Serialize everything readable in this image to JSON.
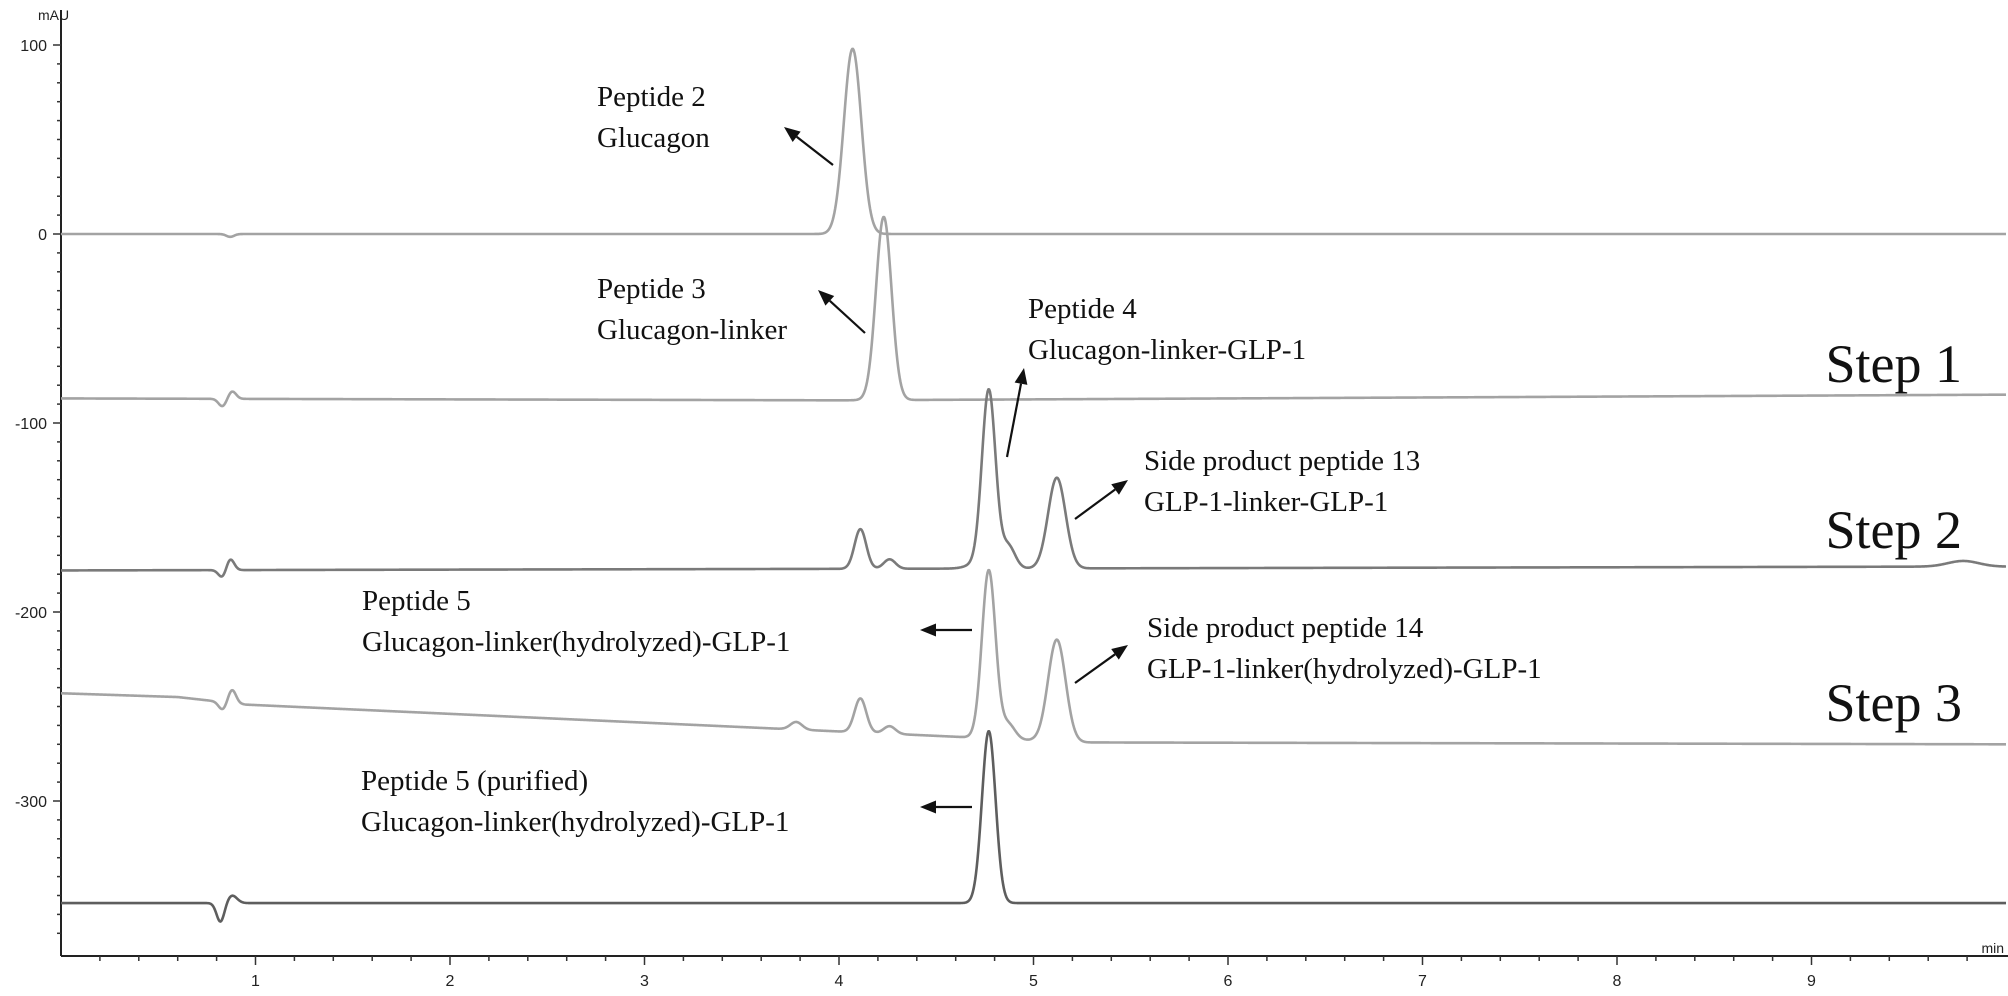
{
  "chart_data": {
    "type": "line",
    "title": "",
    "xlabel": "min",
    "ylabel": "mAU",
    "xlim": [
      0,
      10
    ],
    "ylim": [
      -385,
      110
    ],
    "x_ticks": [
      1,
      2,
      3,
      4,
      5,
      6,
      7,
      8,
      9
    ],
    "y_ticks": [
      100,
      0,
      -100,
      -200,
      -300
    ],
    "x_tick_labels": [
      "1",
      "2",
      "3",
      "4",
      "5",
      "6",
      "7",
      "8",
      "9"
    ],
    "y_tick_labels": [
      "100",
      "0",
      "-100",
      "-200",
      "-300"
    ],
    "grid": false,
    "series": [
      {
        "color": "#a3a3a3",
        "baseline": 0,
        "peaks": [
          {
            "x": 4.07,
            "height": 98,
            "width": 0.045
          },
          {
            "x": 0.87,
            "height": -1.5,
            "width": 0.02
          }
        ]
      },
      {
        "color": "#a3a3a3",
        "baseline_points": [
          [
            0,
            -87
          ],
          [
            4.0,
            -88
          ],
          [
            10,
            -85
          ]
        ],
        "peaks": [
          {
            "x": 4.23,
            "height": 97,
            "width": 0.04
          },
          {
            "x": 0.83,
            "height": -4,
            "width": 0.02
          },
          {
            "x": 0.88,
            "height": 4,
            "width": 0.02
          }
        ]
      },
      {
        "color": "#7a7a7a",
        "baseline_points": [
          [
            0,
            -178
          ],
          [
            9.6,
            -176
          ],
          [
            10,
            -176
          ]
        ],
        "peaks": [
          {
            "x": 4.77,
            "height": 94,
            "width": 0.035
          },
          {
            "x": 4.87,
            "height": 12,
            "width": 0.035
          },
          {
            "x": 5.12,
            "height": 48,
            "width": 0.045
          },
          {
            "x": 4.11,
            "height": 21,
            "width": 0.03
          },
          {
            "x": 4.26,
            "height": 5,
            "width": 0.03
          },
          {
            "x": 4.7,
            "height": 2,
            "width": 0.05
          },
          {
            "x": 9.78,
            "height": 3,
            "width": 0.08
          },
          {
            "x": 0.83,
            "height": -4,
            "width": 0.02
          },
          {
            "x": 0.87,
            "height": 6,
            "width": 0.02
          }
        ]
      },
      {
        "color": "#a3a3a3",
        "baseline_points": [
          [
            0,
            -243
          ],
          [
            0.6,
            -245
          ],
          [
            0.95,
            -249
          ],
          [
            4.6,
            -266
          ],
          [
            5.2,
            -269
          ],
          [
            10,
            -270
          ]
        ],
        "peaks": [
          {
            "x": 4.77,
            "height": 89,
            "width": 0.035
          },
          {
            "x": 4.87,
            "height": 8,
            "width": 0.035
          },
          {
            "x": 5.12,
            "height": 54,
            "width": 0.045
          },
          {
            "x": 4.11,
            "height": 18,
            "width": 0.03
          },
          {
            "x": 4.26,
            "height": 4,
            "width": 0.03
          },
          {
            "x": 3.78,
            "height": 4,
            "width": 0.03
          },
          {
            "x": 0.83,
            "height": -4,
            "width": 0.02
          },
          {
            "x": 0.88,
            "height": 7,
            "width": 0.02
          }
        ]
      },
      {
        "color": "#5e5e5e",
        "baseline": -354,
        "peaks": [
          {
            "x": 4.77,
            "height": 91,
            "width": 0.035
          },
          {
            "x": 0.82,
            "height": -10,
            "width": 0.02
          },
          {
            "x": 0.88,
            "height": 4,
            "width": 0.025
          }
        ]
      }
    ],
    "annotations": [
      {
        "lines": [
          "Peptide 2",
          "Glucagon"
        ]
      },
      {
        "lines": [
          "Peptide 3",
          "Glucagon-linker"
        ]
      },
      {
        "lines": [
          "Peptide 4",
          "Glucagon-linker-GLP-1"
        ]
      },
      {
        "lines": [
          "Side product peptide 13",
          "GLP-1-linker-GLP-1"
        ]
      },
      {
        "lines": [
          "Peptide 5",
          "Glucagon-linker(hydrolyzed)-GLP-1"
        ]
      },
      {
        "lines": [
          "Side product peptide 14",
          "GLP-1-linker(hydrolyzed)-GLP-1"
        ]
      },
      {
        "lines": [
          "Peptide 5 (purified)",
          "Glucagon-linker(hydrolyzed)-GLP-1"
        ]
      }
    ],
    "step_labels": [
      "Step 1",
      "Step 2",
      "Step 3"
    ]
  }
}
